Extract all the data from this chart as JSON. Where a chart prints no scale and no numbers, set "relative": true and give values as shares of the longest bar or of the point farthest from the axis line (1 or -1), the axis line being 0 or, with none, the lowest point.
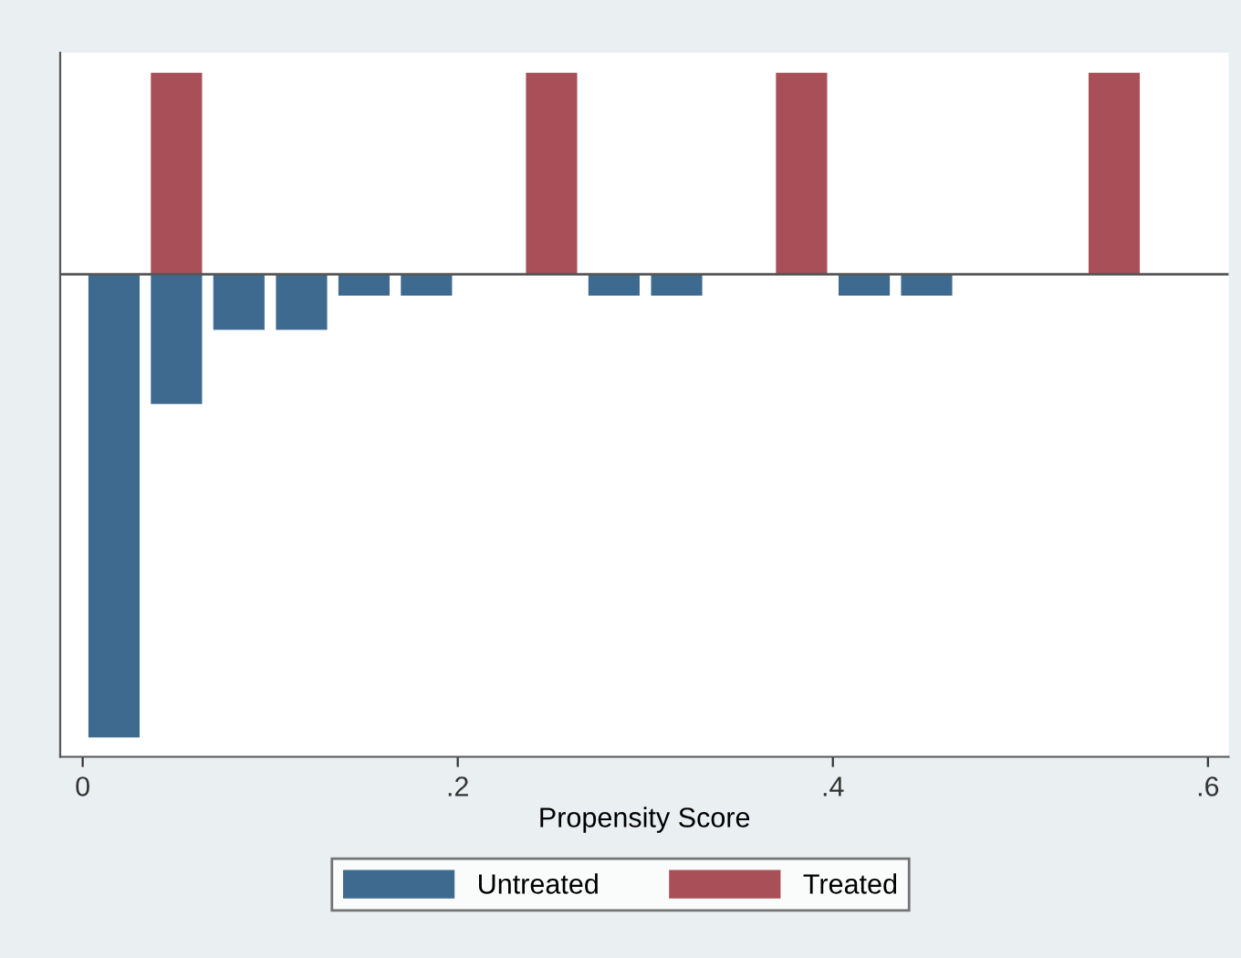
{
  "chart_data": {
    "type": "bar",
    "relative": true,
    "xlabel": "Propensity Score",
    "x": [
      0.0167,
      0.05,
      0.0833,
      0.1167,
      0.15,
      0.1833,
      0.2167,
      0.25,
      0.2833,
      0.3167,
      0.35,
      0.3833,
      0.4167,
      0.45,
      0.4833,
      0.5167,
      0.55
    ],
    "series": [
      {
        "name": "Untreated",
        "color": "#3e6a8f",
        "values": [
          -1,
          -0.28,
          -0.12,
          -0.12,
          -0.046,
          -0.046,
          null,
          null,
          -0.046,
          -0.046,
          null,
          null,
          -0.046,
          -0.046,
          null,
          null,
          null
        ]
      },
      {
        "name": "Treated",
        "color": "#a84f57",
        "values": [
          null,
          0.435,
          null,
          null,
          null,
          null,
          null,
          0.435,
          null,
          null,
          null,
          0.435,
          null,
          null,
          null,
          null,
          0.435
        ]
      }
    ],
    "xlim": [
      -0.012,
      0.611
    ],
    "xticks": [
      {
        "value": 0,
        "label": "0"
      },
      {
        "value": 0.2,
        "label": ".2"
      },
      {
        "value": 0.4,
        "label": ".4"
      },
      {
        "value": 0.6,
        "label": ".6"
      }
    ],
    "grid": false,
    "legend": "bottom"
  }
}
